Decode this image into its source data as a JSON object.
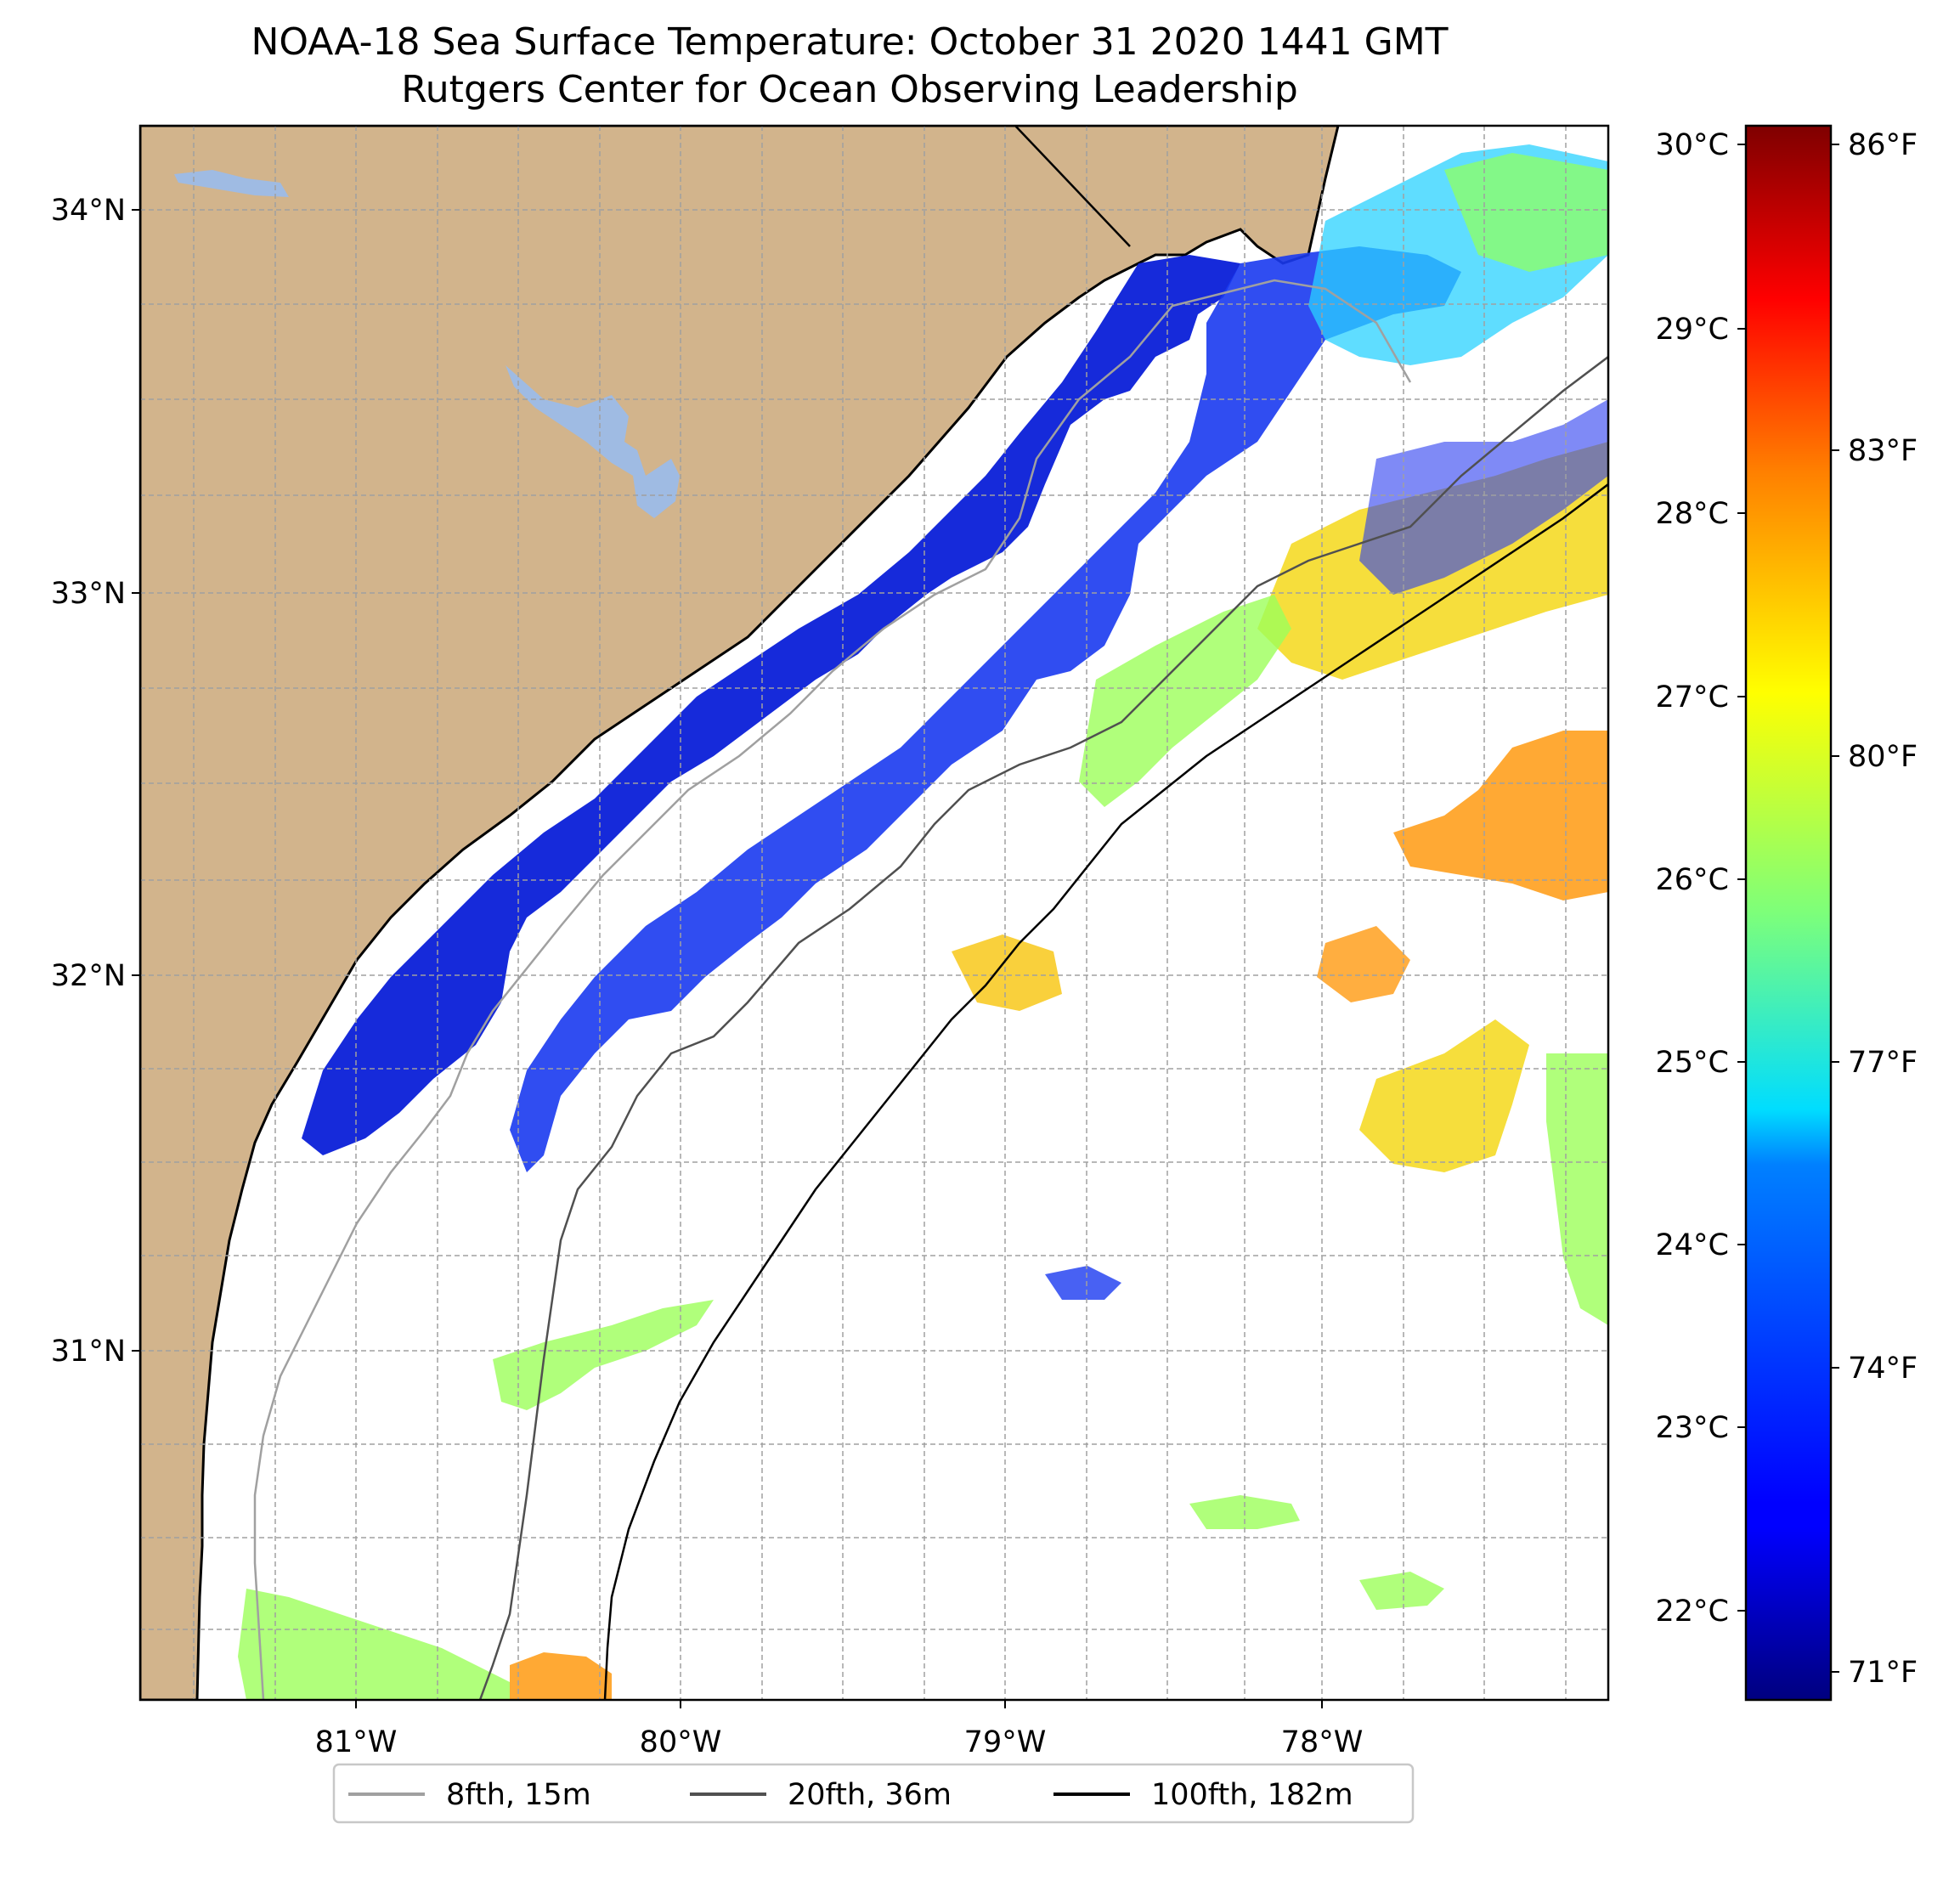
{
  "title_line1": "NOAA-18 Sea Surface Temperature: October 31 2020 1441 GMT",
  "title_line2": "Rutgers Center for Ocean Observing Leadership",
  "map": {
    "extent": {
      "lon_min": -81.68,
      "lon_max": -77.15,
      "lat_min": 30.06,
      "lat_max": 34.22
    },
    "colors": {
      "land": "#d2b48c",
      "lake": "#9fbbe3",
      "ocean": "#ffffff",
      "coast": "#000000",
      "grid": "#a0a0a0"
    },
    "lat_ticks": [
      {
        "value": 34,
        "label": "34°N"
      },
      {
        "value": 33,
        "label": "33°N"
      },
      {
        "value": 32,
        "label": "32°N"
      },
      {
        "value": 31,
        "label": "31°N"
      }
    ],
    "lon_ticks": [
      {
        "value": -81,
        "label": "81°W"
      },
      {
        "value": -80,
        "label": "80°W"
      },
      {
        "value": -79,
        "label": "79°W"
      },
      {
        "value": -78,
        "label": "78°W"
      }
    ],
    "grid_minor_step": 0.25
  },
  "colorbar": {
    "colormap": "jet",
    "celsius_ticks": [
      {
        "value": 30,
        "label": "30°C"
      },
      {
        "value": 29,
        "label": "29°C"
      },
      {
        "value": 28,
        "label": "28°C"
      },
      {
        "value": 27,
        "label": "27°C"
      },
      {
        "value": 26,
        "label": "26°C"
      },
      {
        "value": 25,
        "label": "25°C"
      },
      {
        "value": 24,
        "label": "24°C"
      },
      {
        "value": 23,
        "label": "23°C"
      },
      {
        "value": 22,
        "label": "22°C"
      }
    ],
    "fahrenheit_ticks": [
      {
        "value": 86,
        "label": "86°F"
      },
      {
        "value": 83,
        "label": "83°F"
      },
      {
        "value": 80,
        "label": "80°F"
      },
      {
        "value": 77,
        "label": "77°F"
      },
      {
        "value": 74,
        "label": "74°F"
      },
      {
        "value": 71,
        "label": "71°F"
      }
    ],
    "range_c": [
      21.6,
      30.1
    ]
  },
  "legend": [
    {
      "label": "8fth, 15m",
      "color": "#a0a0a0"
    },
    {
      "label": "20fth, 36m",
      "color": "#505050"
    },
    {
      "label": "100fth, 182m",
      "color": "#000000"
    }
  ]
}
